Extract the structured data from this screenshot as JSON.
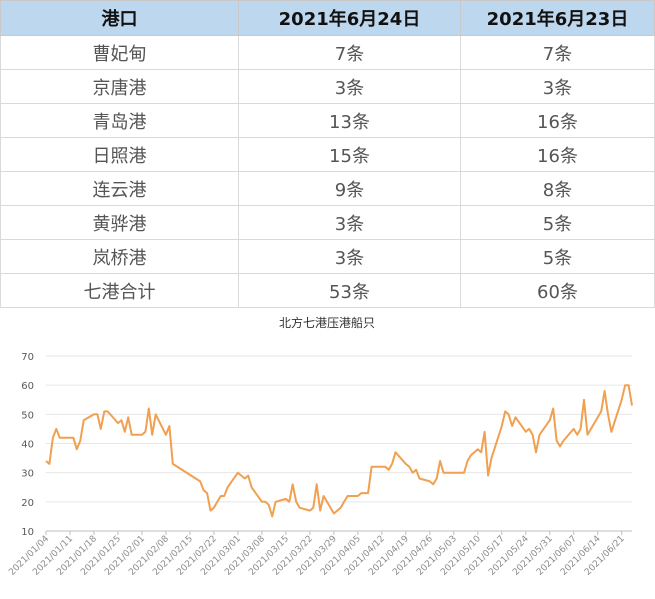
{
  "table": {
    "headers": [
      "港口",
      "2021年6月24日",
      "2021年6月23日"
    ],
    "rows": [
      [
        "曹妃甸",
        "7条",
        "7条"
      ],
      [
        "京唐港",
        "3条",
        "3条"
      ],
      [
        "青岛港",
        "13条",
        "16条"
      ],
      [
        "日照港",
        "15条",
        "16条"
      ],
      [
        "连云港",
        "9条",
        "8条"
      ],
      [
        "黄骅港",
        "3条",
        "5条"
      ],
      [
        "岚桥港",
        "3条",
        "5条"
      ],
      [
        "七港合计",
        "53条",
        "60条"
      ]
    ]
  },
  "chart_data": {
    "type": "line",
    "title": "北方七港压港船只",
    "ylim": [
      10,
      70
    ],
    "yticks": [
      10,
      20,
      30,
      40,
      50,
      60,
      70
    ],
    "xticks": [
      "2021/01/04",
      "2021/01/11",
      "2021/01/18",
      "2021/01/25",
      "2021/02/01",
      "2021/02/08",
      "2021/02/15",
      "2021/02/22",
      "2021/03/01",
      "2021/03/08",
      "2021/03/15",
      "2021/03/22",
      "2021/03/29",
      "2021/04/05",
      "2021/04/12",
      "2021/04/19",
      "2021/04/26",
      "2021/05/03",
      "2021/05/10",
      "2021/05/17",
      "2021/05/24",
      "2021/05/31",
      "2021/06/07",
      "2021/06/14",
      "2021/06/21"
    ],
    "x_start": "2021/01/04",
    "x_end": "2021/06/24",
    "line_color": "#f0a050",
    "series": [
      {
        "name": "",
        "points": [
          [
            "2021/01/04",
            34
          ],
          [
            "2021/01/05",
            33
          ],
          [
            "2021/01/06",
            42
          ],
          [
            "2021/01/07",
            45
          ],
          [
            "2021/01/08",
            42
          ],
          [
            "2021/01/11",
            42
          ],
          [
            "2021/01/12",
            42
          ],
          [
            "2021/01/13",
            38
          ],
          [
            "2021/01/14",
            41
          ],
          [
            "2021/01/15",
            48
          ],
          [
            "2021/01/18",
            50
          ],
          [
            "2021/01/19",
            50
          ],
          [
            "2021/01/20",
            45
          ],
          [
            "2021/01/21",
            51
          ],
          [
            "2021/01/22",
            51
          ],
          [
            "2021/01/25",
            47
          ],
          [
            "2021/01/26",
            48
          ],
          [
            "2021/01/27",
            44
          ],
          [
            "2021/01/28",
            49
          ],
          [
            "2021/01/29",
            43
          ],
          [
            "2021/02/01",
            43
          ],
          [
            "2021/02/02",
            44
          ],
          [
            "2021/02/03",
            52
          ],
          [
            "2021/02/04",
            43
          ],
          [
            "2021/02/05",
            50
          ],
          [
            "2021/02/08",
            43
          ],
          [
            "2021/02/09",
            46
          ],
          [
            "2021/02/10",
            33
          ],
          [
            "2021/02/18",
            27
          ],
          [
            "2021/02/19",
            24
          ],
          [
            "2021/02/20",
            23
          ],
          [
            "2021/02/21",
            17
          ],
          [
            "2021/02/22",
            18
          ],
          [
            "2021/02/23",
            20
          ],
          [
            "2021/02/24",
            22
          ],
          [
            "2021/02/25",
            22
          ],
          [
            "2021/02/26",
            25
          ],
          [
            "2021/03/01",
            30
          ],
          [
            "2021/03/02",
            29
          ],
          [
            "2021/03/03",
            28
          ],
          [
            "2021/03/04",
            29
          ],
          [
            "2021/03/05",
            25
          ],
          [
            "2021/03/08",
            20
          ],
          [
            "2021/03/09",
            20
          ],
          [
            "2021/03/10",
            19
          ],
          [
            "2021/03/11",
            15
          ],
          [
            "2021/03/12",
            20
          ],
          [
            "2021/03/15",
            21
          ],
          [
            "2021/03/16",
            20
          ],
          [
            "2021/03/17",
            26
          ],
          [
            "2021/03/18",
            20
          ],
          [
            "2021/03/19",
            18
          ],
          [
            "2021/03/22",
            17
          ],
          [
            "2021/03/23",
            18
          ],
          [
            "2021/03/24",
            26
          ],
          [
            "2021/03/25",
            17
          ],
          [
            "2021/03/26",
            22
          ],
          [
            "2021/03/29",
            16
          ],
          [
            "2021/03/30",
            17
          ],
          [
            "2021/03/31",
            18
          ],
          [
            "2021/04/01",
            20
          ],
          [
            "2021/04/02",
            22
          ],
          [
            "2021/04/05",
            22
          ],
          [
            "2021/04/06",
            23
          ],
          [
            "2021/04/07",
            23
          ],
          [
            "2021/04/08",
            23
          ],
          [
            "2021/04/09",
            32
          ],
          [
            "2021/04/12",
            32
          ],
          [
            "2021/04/13",
            32
          ],
          [
            "2021/04/14",
            31
          ],
          [
            "2021/04/15",
            33
          ],
          [
            "2021/04/16",
            37
          ],
          [
            "2021/04/19",
            33
          ],
          [
            "2021/04/20",
            32
          ],
          [
            "2021/04/21",
            30
          ],
          [
            "2021/04/22",
            31
          ],
          [
            "2021/04/23",
            28
          ],
          [
            "2021/04/26",
            27
          ],
          [
            "2021/04/27",
            26
          ],
          [
            "2021/04/28",
            28
          ],
          [
            "2021/04/29",
            34
          ],
          [
            "2021/04/30",
            30
          ],
          [
            "2021/05/06",
            30
          ],
          [
            "2021/05/07",
            34
          ],
          [
            "2021/05/08",
            36
          ],
          [
            "2021/05/10",
            38
          ],
          [
            "2021/05/11",
            37
          ],
          [
            "2021/05/12",
            44
          ],
          [
            "2021/05/13",
            29
          ],
          [
            "2021/05/14",
            35
          ],
          [
            "2021/05/17",
            46
          ],
          [
            "2021/05/18",
            51
          ],
          [
            "2021/05/19",
            50
          ],
          [
            "2021/05/20",
            46
          ],
          [
            "2021/05/21",
            49
          ],
          [
            "2021/05/24",
            44
          ],
          [
            "2021/05/25",
            45
          ],
          [
            "2021/05/26",
            43
          ],
          [
            "2021/05/27",
            37
          ],
          [
            "2021/05/28",
            43
          ],
          [
            "2021/05/31",
            48
          ],
          [
            "2021/06/01",
            52
          ],
          [
            "2021/06/02",
            41
          ],
          [
            "2021/06/03",
            39
          ],
          [
            "2021/06/04",
            41
          ],
          [
            "2021/06/07",
            45
          ],
          [
            "2021/06/08",
            43
          ],
          [
            "2021/06/09",
            45
          ],
          [
            "2021/06/10",
            55
          ],
          [
            "2021/06/11",
            43
          ],
          [
            "2021/06/15",
            51
          ],
          [
            "2021/06/16",
            58
          ],
          [
            "2021/06/17",
            50
          ],
          [
            "2021/06/18",
            44
          ],
          [
            "2021/06/21",
            55
          ],
          [
            "2021/06/22",
            60
          ],
          [
            "2021/06/23",
            60
          ],
          [
            "2021/06/24",
            53
          ]
        ]
      }
    ]
  }
}
